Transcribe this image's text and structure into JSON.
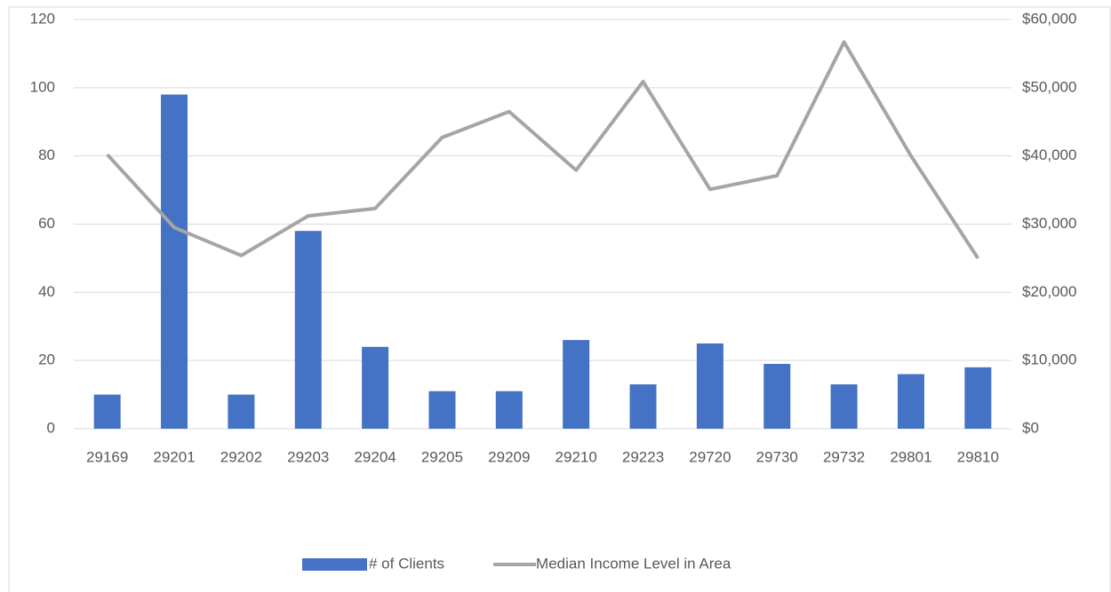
{
  "chart_data": {
    "type": "combo",
    "categories": [
      "29169",
      "29201",
      "29202",
      "29203",
      "29204",
      "29205",
      "29209",
      "29210",
      "29223",
      "29720",
      "29730",
      "29732",
      "29801",
      "29810"
    ],
    "series": [
      {
        "name": "# of Clients",
        "type": "bar",
        "color": "#4472c4",
        "values": [
          10,
          98,
          10,
          58,
          24,
          11,
          11,
          26,
          13,
          25,
          19,
          13,
          16,
          18
        ]
      },
      {
        "name": "Median Income Level in Area",
        "type": "line",
        "axis": "y2",
        "color": "#a5a5a5",
        "values": [
          40200,
          29500,
          25400,
          31200,
          32300,
          42700,
          46500,
          37900,
          50900,
          35100,
          37100,
          56700,
          40000,
          25000
        ]
      }
    ],
    "ylim": [
      0,
      120
    ],
    "yticks": [
      0,
      20,
      40,
      60,
      80,
      100,
      120
    ],
    "y2lim": [
      0,
      60000
    ],
    "y2ticks": [
      {
        "value": 0,
        "label": "$0"
      },
      {
        "value": 10000,
        "label": "$10,000"
      },
      {
        "value": 20000,
        "label": "$20,000"
      },
      {
        "value": 30000,
        "label": "$30,000"
      },
      {
        "value": 40000,
        "label": "$40,000"
      },
      {
        "value": 50000,
        "label": "$50,000"
      },
      {
        "value": 60000,
        "label": "$60,000"
      }
    ],
    "grid": true,
    "legend": "bottom"
  }
}
